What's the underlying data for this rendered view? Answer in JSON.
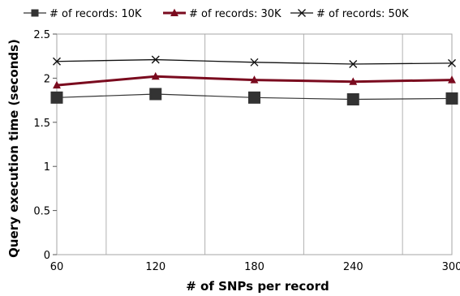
{
  "chart_data": {
    "type": "line",
    "title": "",
    "xlabel": "# of SNPs per record",
    "ylabel": "Query execution time (seconds)",
    "x": [
      60,
      120,
      180,
      240,
      300
    ],
    "x_tick_labels": [
      "60",
      "120",
      "180",
      "240",
      "300"
    ],
    "ylim": [
      0,
      2.5
    ],
    "y_ticks": [
      0,
      0.5,
      1,
      1.5,
      2,
      2.5
    ],
    "y_tick_labels": [
      "0",
      "0.5",
      "1",
      "1.5",
      "2",
      "2.5"
    ],
    "grid": "vertical lines only",
    "legend_position": "top",
    "series": [
      {
        "name": "# of records: 10K",
        "values": [
          1.78,
          1.82,
          1.78,
          1.76,
          1.77
        ],
        "color": "#333333",
        "marker": "square"
      },
      {
        "name": "# of records: 30K",
        "values": [
          1.92,
          2.02,
          1.98,
          1.96,
          1.98
        ],
        "color": "#7a0a1e",
        "marker": "triangle"
      },
      {
        "name": "# of records: 50K",
        "values": [
          2.19,
          2.21,
          2.18,
          2.16,
          2.17
        ],
        "color": "#111111",
        "marker": "x"
      }
    ]
  }
}
